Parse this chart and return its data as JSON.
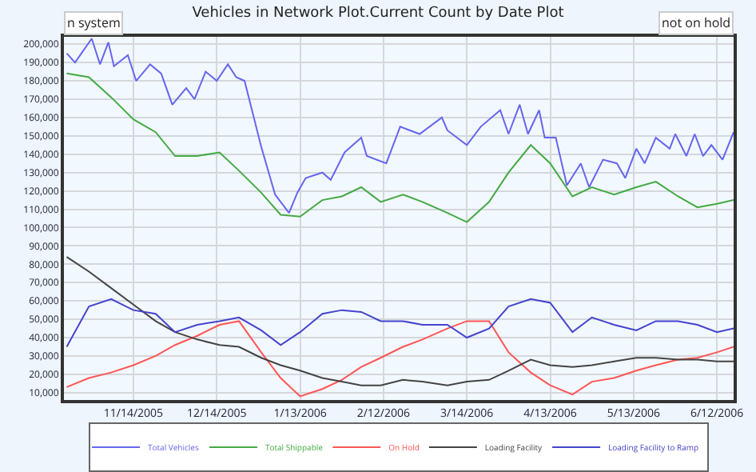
{
  "chart_data": {
    "type": "line",
    "title": "Vehicles in Network Plot.Current Count by Date Plot",
    "xlim": [
      "2005-10-20",
      "2006-06-18"
    ],
    "xticks": [
      {
        "value": "2005-11-14",
        "label": "11/14/2005"
      },
      {
        "value": "2005-12-14",
        "label": "12/14/2005"
      },
      {
        "value": "2006-01-13",
        "label": "1/13/2006"
      },
      {
        "value": "2006-02-12",
        "label": "2/12/2006"
      },
      {
        "value": "2006-03-14",
        "label": "3/14/2006"
      },
      {
        "value": "2006-04-13",
        "label": "4/13/2006"
      },
      {
        "value": "2006-05-13",
        "label": "5/13/2006"
      },
      {
        "value": "2006-06-12",
        "label": "6/12/2006"
      }
    ],
    "ylim": [
      6000,
      204000
    ],
    "yticks": [
      {
        "value": 10000,
        "label": "10,000"
      },
      {
        "value": 20000,
        "label": "20,000"
      },
      {
        "value": 30000,
        "label": "30,000"
      },
      {
        "value": 40000,
        "label": "40,000"
      },
      {
        "value": 50000,
        "label": "50,000"
      },
      {
        "value": 60000,
        "label": "60,000"
      },
      {
        "value": 70000,
        "label": "70,000"
      },
      {
        "value": 80000,
        "label": "80,000"
      },
      {
        "value": 90000,
        "label": "90,000"
      },
      {
        "value": 100000,
        "label": "100,000"
      },
      {
        "value": 110000,
        "label": "110,000"
      },
      {
        "value": 120000,
        "label": "120,000"
      },
      {
        "value": 130000,
        "label": "130,000"
      },
      {
        "value": 140000,
        "label": "140,000"
      },
      {
        "value": 150000,
        "label": "150,000"
      },
      {
        "value": 160000,
        "label": "160,000"
      },
      {
        "value": 170000,
        "label": "170,000"
      },
      {
        "value": 180000,
        "label": "180,000"
      },
      {
        "value": 190000,
        "label": "190,000"
      },
      {
        "value": 200000,
        "label": "200,000"
      }
    ],
    "x": [
      "2005-10-21",
      "2005-10-29",
      "2005-11-06",
      "2005-11-14",
      "2005-11-22",
      "2005-11-29",
      "2005-12-07",
      "2005-12-15",
      "2005-12-22",
      "2005-12-30",
      "2006-01-06",
      "2006-01-13",
      "2006-01-21",
      "2006-01-28",
      "2006-02-04",
      "2006-02-11",
      "2006-02-19",
      "2006-02-26",
      "2006-03-07",
      "2006-03-14",
      "2006-03-22",
      "2006-03-29",
      "2006-04-06",
      "2006-04-13",
      "2006-04-21",
      "2006-04-28",
      "2006-05-06",
      "2006-05-14",
      "2006-05-21",
      "2006-05-29",
      "2006-06-05",
      "2006-06-12",
      "2006-06-18"
    ],
    "series": [
      {
        "name": "Total Vehicles",
        "color": "#6666ee",
        "x": [
          "2005-10-21",
          "2005-10-24",
          "2005-10-30",
          "2005-11-02",
          "2005-11-05",
          "2005-11-07",
          "2005-11-12",
          "2005-11-15",
          "2005-11-20",
          "2005-11-24",
          "2005-11-28",
          "2005-12-03",
          "2005-12-06",
          "2005-12-10",
          "2005-12-14",
          "2005-12-18",
          "2005-12-21",
          "2005-12-24",
          "2005-12-30",
          "2006-01-04",
          "2006-01-09",
          "2006-01-12",
          "2006-01-15",
          "2006-01-21",
          "2006-01-24",
          "2006-01-29",
          "2006-02-04",
          "2006-02-06",
          "2006-02-13",
          "2006-02-18",
          "2006-02-25",
          "2006-03-05",
          "2006-03-07",
          "2006-03-14",
          "2006-03-19",
          "2006-03-26",
          "2006-03-29",
          "2006-04-02",
          "2006-04-05",
          "2006-04-09",
          "2006-04-11",
          "2006-04-15",
          "2006-04-19",
          "2006-04-24",
          "2006-04-27",
          "2006-05-02",
          "2006-05-07",
          "2006-05-10",
          "2006-05-14",
          "2006-05-17",
          "2006-05-21",
          "2006-05-26",
          "2006-05-28",
          "2006-06-01",
          "2006-06-04",
          "2006-06-07",
          "2006-06-10",
          "2006-06-14",
          "2006-06-18"
        ],
        "values": [
          195000,
          190000,
          203000,
          189000,
          201000,
          188000,
          194000,
          180000,
          189000,
          184000,
          167000,
          176000,
          170000,
          185000,
          180000,
          189000,
          182000,
          180000,
          144000,
          118000,
          108000,
          119000,
          127000,
          130000,
          126000,
          141000,
          149000,
          139000,
          135000,
          155000,
          151000,
          160000,
          153000,
          145000,
          155000,
          164000,
          151000,
          167000,
          151000,
          164000,
          149000,
          149000,
          123000,
          135000,
          122000,
          137000,
          135000,
          127000,
          143000,
          135000,
          149000,
          143000,
          151000,
          139000,
          151000,
          139000,
          145000,
          137000,
          152000
        ]
      },
      {
        "name": "Total Shippable",
        "color": "#44aa44",
        "values": [
          184000,
          182000,
          171000,
          159000,
          152000,
          139000,
          139000,
          141000,
          131000,
          119000,
          107000,
          106000,
          115000,
          117000,
          122000,
          114000,
          118000,
          114000,
          108000,
          103000,
          114000,
          130000,
          145000,
          135000,
          117000,
          122000,
          118000,
          122000,
          125000,
          117000,
          111000,
          113000,
          115000
        ]
      },
      {
        "name": "On Hold",
        "color": "#ff5555",
        "values": [
          13000,
          18000,
          21000,
          25000,
          30000,
          36000,
          41000,
          47000,
          49000,
          32000,
          18000,
          8000,
          12000,
          17000,
          24000,
          29000,
          35000,
          39000,
          45000,
          49000,
          49000,
          32000,
          21000,
          14000,
          9000,
          16000,
          18000,
          22000,
          25000,
          28000,
          29000,
          32000,
          35000
        ]
      },
      {
        "name": "Loading Facility",
        "color": "#444444",
        "values": [
          84000,
          76000,
          67000,
          58000,
          49000,
          43000,
          39000,
          36000,
          35000,
          29000,
          25000,
          22000,
          18000,
          16000,
          14000,
          14000,
          17000,
          16000,
          14000,
          16000,
          17000,
          22000,
          28000,
          25000,
          24000,
          25000,
          27000,
          29000,
          29000,
          28000,
          28000,
          27000,
          27000
        ]
      },
      {
        "name": "Loading Facility to Ramp",
        "color": "#4444cc",
        "values": [
          35000,
          57000,
          61000,
          55000,
          53000,
          43000,
          47000,
          49000,
          51000,
          44000,
          36000,
          43000,
          53000,
          55000,
          54000,
          49000,
          49000,
          47000,
          47000,
          40000,
          45000,
          57000,
          61000,
          59000,
          43000,
          51000,
          47000,
          44000,
          49000,
          49000,
          47000,
          43000,
          45000
        ]
      }
    ],
    "annotations": [
      "n system",
      "not on hold"
    ],
    "grid": true,
    "legend": "bottom",
    "line_style": "solid"
  }
}
